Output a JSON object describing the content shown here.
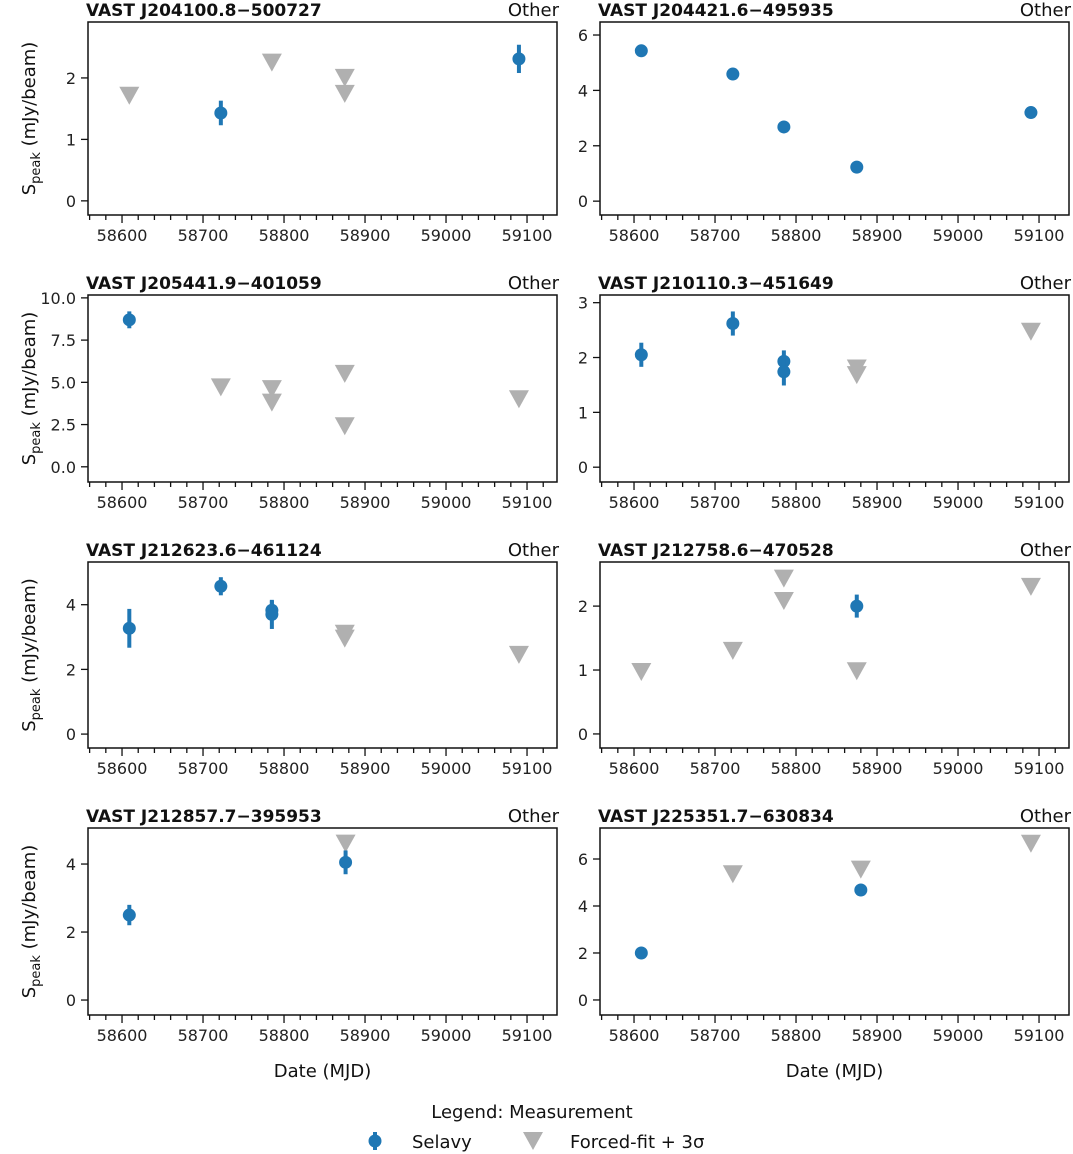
{
  "chart_data": {
    "type": "scatter",
    "xlabel": "Date (MJD)",
    "ylabel": "S_peak (mJy/beam)",
    "ylabel_main": "S",
    "ylabel_sub": "peak",
    "ylabel_rest": " (mJy/beam)",
    "xlim": [
      58558,
      59137
    ],
    "xticks": [
      58600,
      58700,
      58800,
      58900,
      59000,
      59100
    ],
    "legend": {
      "title": "Legend: Measurement",
      "entries": [
        {
          "name": "Selavy",
          "marker": "circle-errorbar",
          "color": "#1f77b4"
        },
        {
          "name": "Forced-fit + 3σ",
          "marker": "triangle-down",
          "color": "#b0b0b0"
        }
      ],
      "placement": "bottom-center"
    },
    "panels": [
      {
        "title": "VAST J204100.8−500727",
        "tag": "Other",
        "ylim": [
          -0.23,
          2.91
        ],
        "yticks": [
          0,
          1,
          2
        ],
        "selavy": [
          [
            58722,
            1.43,
            0.2
          ],
          [
            59090,
            2.31,
            0.23
          ]
        ],
        "forced": [
          [
            58609,
            1.71
          ],
          [
            58785,
            2.25
          ],
          [
            58875,
            2.0
          ],
          [
            58875,
            1.74
          ]
        ]
      },
      {
        "title": "VAST J204421.6−495935",
        "tag": "Other",
        "ylim": [
          -0.5,
          6.47
        ],
        "yticks": [
          0,
          2,
          4,
          6
        ],
        "selavy": [
          [
            58609,
            5.43,
            0.1
          ],
          [
            58722,
            4.59,
            0.1
          ],
          [
            58785,
            2.68,
            0.2
          ],
          [
            58875,
            1.23,
            0.1
          ],
          [
            59090,
            3.2,
            0.15
          ]
        ],
        "forced": []
      },
      {
        "title": "VAST J205441.9−401059",
        "tag": "Other",
        "ylim": [
          -0.9,
          10.17
        ],
        "yticks": [
          0,
          2.5,
          5,
          7.5,
          10
        ],
        "ytick_labels": [
          "0.0",
          "2.5",
          "5.0",
          "7.5",
          "10.0"
        ],
        "selavy": [
          [
            58609,
            8.7,
            0.5
          ]
        ],
        "forced": [
          [
            58722,
            4.7
          ],
          [
            58785,
            4.6
          ],
          [
            58785,
            3.8
          ],
          [
            58875,
            5.5
          ],
          [
            58875,
            2.4
          ],
          [
            59090,
            4.0
          ]
        ]
      },
      {
        "title": "VAST J210110.3−451649",
        "tag": "Other",
        "ylim": [
          -0.27,
          3.14
        ],
        "yticks": [
          0,
          1,
          2,
          3
        ],
        "selavy": [
          [
            58609,
            2.05,
            0.22
          ],
          [
            58722,
            2.62,
            0.22
          ],
          [
            58785,
            1.93,
            0.2
          ],
          [
            58785,
            1.74,
            0.25
          ]
        ],
        "forced": [
          [
            58875,
            1.8
          ],
          [
            58875,
            1.68
          ],
          [
            59090,
            2.47
          ]
        ]
      },
      {
        "title": "VAST J212623.6−461124",
        "tag": "Other",
        "ylim": [
          -0.43,
          5.32
        ],
        "yticks": [
          0,
          2,
          4
        ],
        "selavy": [
          [
            58609,
            3.27,
            0.6
          ],
          [
            58722,
            4.57,
            0.28
          ],
          [
            58785,
            3.83,
            0.3
          ],
          [
            58785,
            3.7,
            0.45
          ]
        ],
        "forced": [
          [
            58875,
            3.1
          ],
          [
            58875,
            2.95
          ],
          [
            59090,
            2.45
          ]
        ]
      },
      {
        "title": "VAST J212758.6−470528",
        "tag": "Other",
        "ylim": [
          -0.22,
          2.69
        ],
        "yticks": [
          0,
          1,
          2
        ],
        "selavy": [
          [
            58875,
            2.0,
            0.18
          ]
        ],
        "forced": [
          [
            58609,
            0.97
          ],
          [
            58722,
            1.3
          ],
          [
            58785,
            2.43
          ],
          [
            58785,
            2.08
          ],
          [
            58875,
            0.98
          ],
          [
            59090,
            2.3
          ]
        ]
      },
      {
        "title": "VAST J212857.7−395953",
        "tag": "Other",
        "ylim": [
          -0.44,
          5.06
        ],
        "yticks": [
          0,
          2,
          4
        ],
        "selavy": [
          [
            58609,
            2.5,
            0.3
          ],
          [
            58876,
            4.05,
            0.35
          ]
        ],
        "forced": [
          [
            58876,
            4.6
          ]
        ]
      },
      {
        "title": "VAST J225351.7−630834",
        "tag": "Other",
        "ylim": [
          -0.64,
          7.32
        ],
        "yticks": [
          0,
          2,
          4,
          6
        ],
        "selavy": [
          [
            58609,
            2.0,
            0.1
          ],
          [
            58880,
            4.68,
            0.15
          ]
        ],
        "forced": [
          [
            58722,
            5.35
          ],
          [
            58880,
            5.55
          ],
          [
            59090,
            6.65
          ]
        ]
      }
    ]
  }
}
